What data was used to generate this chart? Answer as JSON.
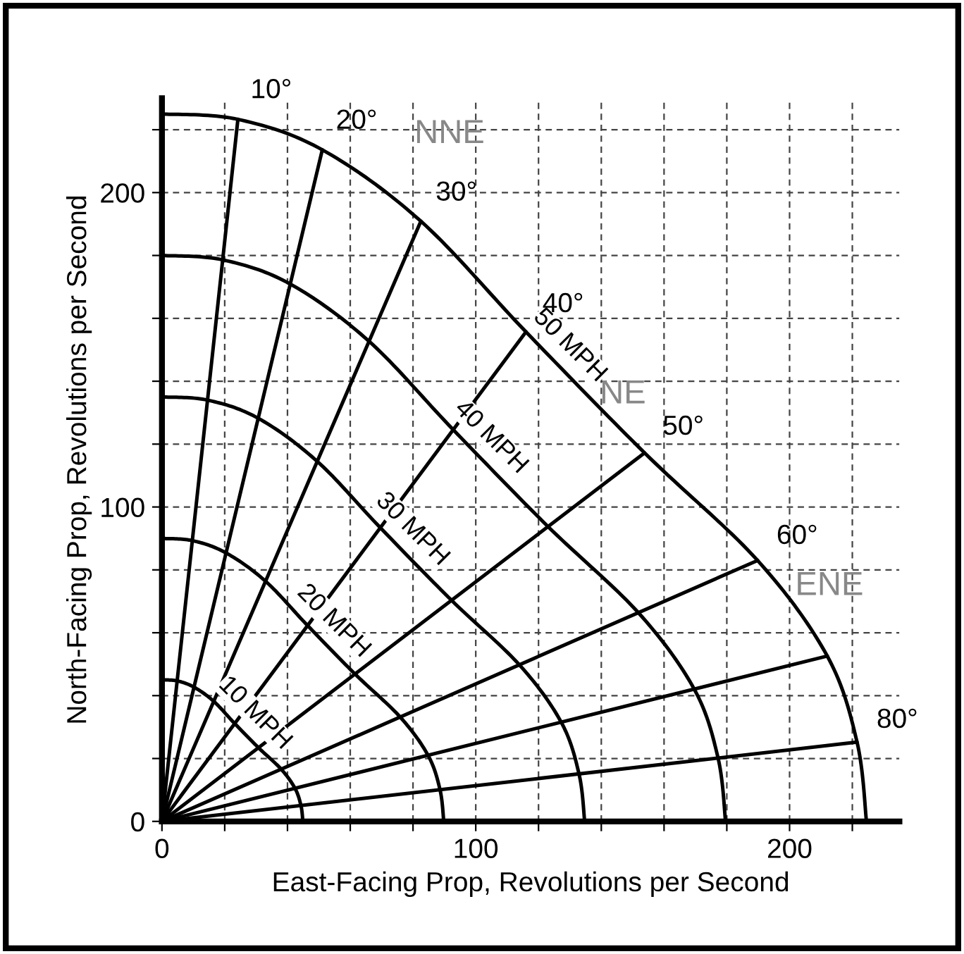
{
  "chart_data": {
    "type": "line",
    "xlabel": "East-Facing Prop, Revolutions per Second",
    "ylabel": "North-Facing Prop, Revolutions per Second",
    "xlim": [
      0,
      235
    ],
    "ylim": [
      0,
      230
    ],
    "xticks": [
      0,
      {
        "value": 20,
        "label": null
      },
      {
        "value": 40,
        "label": null
      },
      {
        "value": 60,
        "label": null
      },
      {
        "value": 80,
        "label": null
      },
      100,
      {
        "value": 120,
        "label": null
      },
      {
        "value": 140,
        "label": null
      },
      {
        "value": 160,
        "label": null
      },
      {
        "value": 180,
        "label": null
      },
      200,
      {
        "value": 220,
        "label": null
      }
    ],
    "yticks": [
      0,
      {
        "value": 20,
        "label": null
      },
      {
        "value": 40,
        "label": null
      },
      {
        "value": 60,
        "label": null
      },
      {
        "value": 80,
        "label": null
      },
      100,
      {
        "value": 120,
        "label": null
      },
      {
        "value": 140,
        "label": null
      },
      {
        "value": 160,
        "label": null
      },
      {
        "value": 180,
        "label": null
      },
      200,
      {
        "value": 220,
        "label": null
      }
    ],
    "grid": true,
    "series": [
      {
        "name": "50 MPH",
        "color": "#000000",
        "x": [
          0,
          24.2,
          51.1,
          82.5,
          116,
          153.8,
          189.8,
          212,
          221.5,
          224.5
        ],
        "values": [
          225,
          223.3,
          213.6,
          190.9,
          155.7,
          117.2,
          83,
          52.6,
          25.2,
          0
        ]
      },
      {
        "name": "40 MPH",
        "color": "#000000",
        "x": [
          0,
          19.4,
          40.9,
          66,
          92.8,
          123,
          151.8,
          169.6,
          177.2,
          179.6
        ],
        "values": [
          180,
          178.6,
          170.9,
          152.7,
          124.6,
          93.8,
          66.4,
          42.1,
          20.2,
          0
        ]
      },
      {
        "name": "30 MPH",
        "color": "#000000",
        "x": [
          0,
          14.5,
          30.7,
          49.5,
          69.6,
          92.3,
          113.9,
          127.2,
          132.9,
          134.7
        ],
        "values": [
          135,
          134,
          128.2,
          114.5,
          93.4,
          70.3,
          49.8,
          31.6,
          15.1,
          0
        ]
      },
      {
        "name": "20 MPH",
        "color": "#000000",
        "x": [
          0,
          9.7,
          20.4,
          33,
          46.4,
          61.5,
          75.9,
          84.8,
          88.6,
          89.8
        ],
        "values": [
          90,
          89.3,
          85.4,
          76.4,
          62.3,
          46.9,
          33.2,
          21,
          10.1,
          0
        ]
      },
      {
        "name": "10 MPH",
        "color": "#000000",
        "x": [
          0,
          4.8,
          10.2,
          16.5,
          23.2,
          30.8,
          38,
          42.4,
          44.3,
          44.9
        ],
        "values": [
          45,
          44.7,
          42.7,
          38.2,
          31.1,
          23.4,
          16.6,
          10.5,
          5,
          0
        ]
      },
      {
        "color": "#000000",
        "x": [
          0,
          24.2
        ],
        "values": [
          0,
          223.3
        ]
      },
      {
        "color": "#000000",
        "x": [
          0,
          51.1
        ],
        "values": [
          0,
          213.6
        ]
      },
      {
        "color": "#000000",
        "x": [
          0,
          82.5
        ],
        "values": [
          0,
          190.9
        ]
      },
      {
        "color": "#000000",
        "x": [
          0,
          116
        ],
        "values": [
          0,
          155.7
        ]
      },
      {
        "color": "#000000",
        "x": [
          0,
          153.8
        ],
        "values": [
          0,
          117.2
        ]
      },
      {
        "color": "#000000",
        "x": [
          0,
          189.8
        ],
        "values": [
          0,
          83
        ]
      },
      {
        "color": "#000000",
        "x": [
          0,
          212
        ],
        "values": [
          0,
          52.6
        ]
      },
      {
        "color": "#000000",
        "x": [
          0,
          221.5
        ],
        "values": [
          0,
          25.2
        ]
      }
    ],
    "annotations": [
      {
        "text": "10°",
        "x": 24.2,
        "y": 223.3
      },
      {
        "text": "20°",
        "x": 51.1,
        "y": 213.6
      },
      {
        "text": "30°",
        "x": 82.5,
        "y": 190.9
      },
      {
        "text": "40°",
        "x": 116,
        "y": 155.7
      },
      {
        "text": "50°",
        "x": 153.8,
        "y": 117.2
      },
      {
        "text": "60°",
        "x": 189.8,
        "y": 83
      },
      {
        "text": "80°",
        "x": 221.5,
        "y": 25.2
      },
      "NNE",
      "NE",
      "ENE"
    ]
  }
}
